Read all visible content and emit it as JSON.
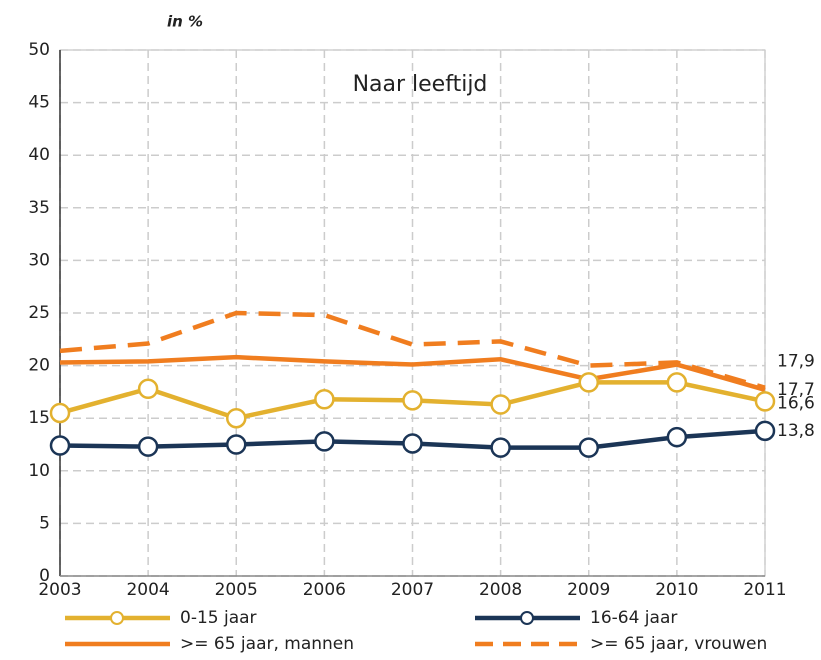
{
  "chart_data": {
    "type": "line",
    "title": "Naar leeftijd",
    "y_label": "in %",
    "categories": [
      "2003",
      "2004",
      "2005",
      "2006",
      "2007",
      "2008",
      "2009",
      "2010",
      "2011"
    ],
    "ylim": [
      0,
      50
    ],
    "yticks": [
      0,
      5,
      10,
      15,
      20,
      25,
      30,
      35,
      40,
      45,
      50
    ],
    "grid": true,
    "series": [
      {
        "name": "0-15 jaar",
        "color": "#e3b12f",
        "marker": true,
        "dashed": false,
        "values": [
          15.5,
          17.8,
          15.0,
          16.8,
          16.7,
          16.3,
          18.4,
          18.4,
          16.6
        ],
        "value_labels": [
          null,
          null,
          null,
          null,
          null,
          null,
          null,
          null,
          "16,6"
        ]
      },
      {
        "name": "16-64 jaar",
        "color": "#1b3556",
        "marker": true,
        "dashed": false,
        "values": [
          12.4,
          12.3,
          12.5,
          12.8,
          12.6,
          12.2,
          12.2,
          13.2,
          13.8
        ],
        "value_labels": [
          null,
          null,
          null,
          null,
          null,
          null,
          null,
          null,
          "13,8"
        ]
      },
      {
        "name": ">= 65 jaar, mannen",
        "color": "#f07d1f",
        "marker": false,
        "dashed": false,
        "values": [
          20.3,
          20.4,
          20.8,
          20.4,
          20.1,
          20.6,
          18.7,
          20.1,
          17.7
        ],
        "value_labels": [
          null,
          null,
          null,
          null,
          null,
          null,
          null,
          null,
          "17,7"
        ]
      },
      {
        "name": ">= 65 jaar, vrouwen",
        "color": "#f07d1f",
        "marker": false,
        "dashed": true,
        "values": [
          21.4,
          22.1,
          25.0,
          24.8,
          22.0,
          22.3,
          20.0,
          20.3,
          17.9
        ],
        "value_labels": [
          null,
          null,
          null,
          null,
          null,
          null,
          null,
          null,
          "17,9"
        ]
      }
    ]
  }
}
